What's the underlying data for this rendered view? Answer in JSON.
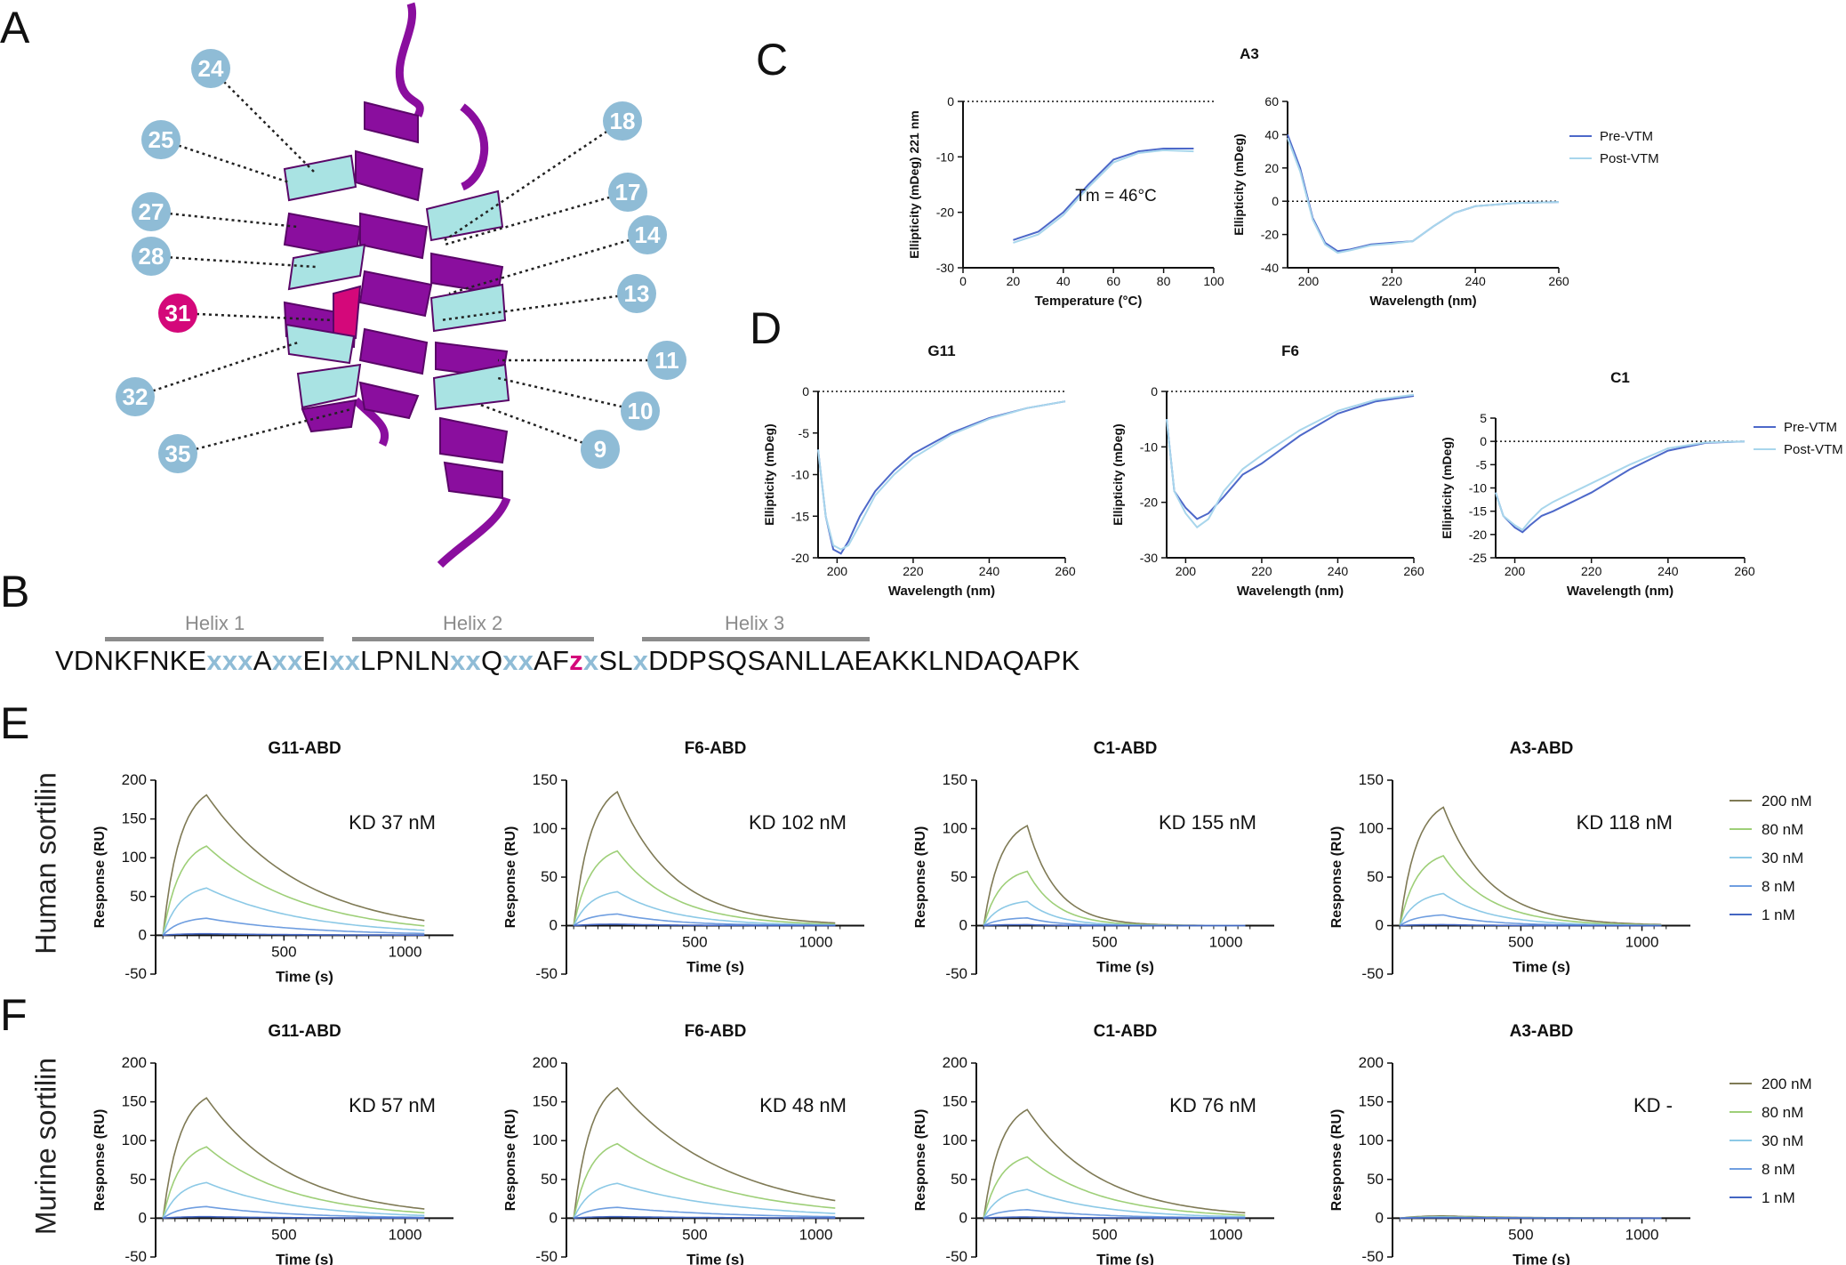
{
  "panel_labels": {
    "a": "A",
    "b": "B",
    "c": "C",
    "d": "D",
    "e": "E",
    "f": "F"
  },
  "row_labels": {
    "e": "Human sortilin",
    "f": "Murine sortilin"
  },
  "colors": {
    "helix_purple": "#8a0e9e",
    "helix_cyan": "#a9e3e3",
    "pos31": "#d4087a",
    "circle": "#8fbcd6",
    "pre": "#4d68c9",
    "post": "#a8d6ec",
    "c200": "#7f7a55",
    "c80": "#9ecf78",
    "c30": "#8cc9e6",
    "c8": "#6f9ee0",
    "c1": "#4466c2"
  },
  "panel_a": {
    "positions": [
      "24",
      "25",
      "27",
      "28",
      "31",
      "32",
      "35",
      "18",
      "17",
      "14",
      "13",
      "11",
      "10",
      "9"
    ]
  },
  "panel_b": {
    "helices": [
      "Helix 1",
      "Helix 2",
      "Helix 3"
    ],
    "sequence": [
      {
        "t": "VDNKFNKE",
        "c": "n"
      },
      {
        "t": "xxx",
        "c": "x"
      },
      {
        "t": "A",
        "c": "n"
      },
      {
        "t": "xx",
        "c": "x"
      },
      {
        "t": "EI",
        "c": "n"
      },
      {
        "t": "xx",
        "c": "x"
      },
      {
        "t": "LPNLN",
        "c": "n"
      },
      {
        "t": "xx",
        "c": "x"
      },
      {
        "t": "Q",
        "c": "n"
      },
      {
        "t": "xx",
        "c": "x"
      },
      {
        "t": "AF",
        "c": "n"
      },
      {
        "t": "z",
        "c": "z"
      },
      {
        "t": "x",
        "c": "x"
      },
      {
        "t": "SL",
        "c": "n"
      },
      {
        "t": "x",
        "c": "x"
      },
      {
        "t": "DDPSQSANLLAEAKKLNDAQAPK",
        "c": "n"
      }
    ]
  },
  "chart_data": [
    {
      "id": "c_melt",
      "type": "line",
      "title": "A3",
      "xlabel": "Temperature (°C)",
      "ylabel": "Ellipticity (mDeg) 221 nm",
      "xlim": [
        0,
        100
      ],
      "ylim": [
        -30,
        0
      ],
      "xticks": [
        0,
        20,
        40,
        60,
        80,
        100
      ],
      "yticks": [
        0,
        -10,
        -20,
        -30
      ],
      "annotation": "Tm = 46°C",
      "zero_line": true,
      "series": [
        {
          "name": "Pre-VTM",
          "x": [
            20,
            30,
            40,
            46,
            50,
            60,
            70,
            80,
            92
          ],
          "y": [
            -25,
            -23.5,
            -20,
            -17,
            -15,
            -10.5,
            -9,
            -8.5,
            -8.5
          ]
        },
        {
          "name": "Post-VTM",
          "x": [
            20,
            30,
            40,
            46,
            50,
            60,
            70,
            80,
            92
          ],
          "y": [
            -25.5,
            -24,
            -20.5,
            -17.5,
            -15.5,
            -11,
            -9.3,
            -8.8,
            -9
          ]
        }
      ]
    },
    {
      "id": "c_spec",
      "type": "line",
      "title": "",
      "xlabel": "Wavelength (nm)",
      "ylabel": "Ellipticity (mDeg)",
      "xlim": [
        195,
        260
      ],
      "ylim": [
        -40,
        60
      ],
      "xticks": [
        200,
        220,
        240,
        260
      ],
      "yticks": [
        60,
        40,
        20,
        0,
        -20,
        -40
      ],
      "zero_line": true,
      "legend": [
        "Pre-VTM",
        "Post-VTM"
      ],
      "series": [
        {
          "name": "Pre-VTM",
          "x": [
            195,
            198,
            201,
            204,
            207,
            210,
            215,
            220,
            225,
            230,
            235,
            240,
            250,
            260
          ],
          "y": [
            40,
            20,
            -10,
            -25,
            -30,
            -29,
            -26,
            -25,
            -24,
            -15,
            -7,
            -3,
            -1,
            -0.5
          ]
        },
        {
          "name": "Post-VTM",
          "x": [
            195,
            198,
            201,
            204,
            207,
            210,
            215,
            220,
            225,
            230,
            235,
            240,
            250,
            260
          ],
          "y": [
            38,
            18,
            -11,
            -26,
            -31,
            -29.5,
            -26.5,
            -25.5,
            -24,
            -15,
            -7,
            -3,
            -1,
            -0.5
          ]
        }
      ]
    },
    {
      "id": "d_g11",
      "type": "line",
      "title": "G11",
      "xlabel": "Wavelength (nm)",
      "ylabel": "Ellipticity (mDeg)",
      "xlim": [
        195,
        260
      ],
      "ylim": [
        -20,
        0
      ],
      "xticks": [
        200,
        220,
        240,
        260
      ],
      "yticks": [
        0,
        -5,
        -10,
        -15,
        -20
      ],
      "zero_line": true,
      "series": [
        {
          "name": "Pre-VTM",
          "x": [
            195,
            197,
            199,
            201,
            203,
            206,
            210,
            215,
            220,
            230,
            240,
            250,
            260
          ],
          "y": [
            -7,
            -15,
            -19,
            -19.5,
            -18,
            -15,
            -12,
            -9.5,
            -7.5,
            -5,
            -3.2,
            -2,
            -1.2
          ]
        },
        {
          "name": "Post-VTM",
          "x": [
            195,
            197,
            199,
            201,
            203,
            206,
            210,
            215,
            220,
            230,
            240,
            250,
            260
          ],
          "y": [
            -7,
            -15,
            -18.5,
            -19,
            -18.5,
            -16,
            -12.5,
            -10,
            -8,
            -5.2,
            -3.3,
            -2,
            -1.2
          ]
        }
      ]
    },
    {
      "id": "d_f6",
      "type": "line",
      "title": "F6",
      "xlabel": "Wavelength (nm)",
      "ylabel": "Ellipticity (mDeg)",
      "xlim": [
        195,
        260
      ],
      "ylim": [
        -30,
        0
      ],
      "xticks": [
        200,
        220,
        240,
        260
      ],
      "yticks": [
        0,
        -10,
        -20,
        -30
      ],
      "zero_line": true,
      "series": [
        {
          "name": "Pre-VTM",
          "x": [
            195,
            197,
            200,
            203,
            206,
            210,
            215,
            220,
            230,
            240,
            250,
            260
          ],
          "y": [
            -5,
            -18,
            -21,
            -23,
            -22,
            -19,
            -15,
            -13,
            -8,
            -4,
            -1.8,
            -0.8
          ]
        },
        {
          "name": "Post-VTM",
          "x": [
            195,
            197,
            200,
            203,
            206,
            210,
            215,
            220,
            230,
            240,
            250,
            260
          ],
          "y": [
            -5,
            -18,
            -22,
            -24.5,
            -23,
            -18,
            -14,
            -11.5,
            -7,
            -3.5,
            -1.5,
            -0.6
          ]
        }
      ]
    },
    {
      "id": "d_c1",
      "type": "line",
      "title": "C1",
      "xlabel": "Wavelength (nm)",
      "ylabel": "Ellipticity (mDeg)",
      "xlim": [
        195,
        260
      ],
      "ylim": [
        -25,
        5
      ],
      "xticks": [
        200,
        220,
        240,
        260
      ],
      "yticks": [
        5,
        0,
        -5,
        -10,
        -15,
        -20,
        -25
      ],
      "zero_line": true,
      "legend": [
        "Pre-VTM",
        "Post-VTM"
      ],
      "series": [
        {
          "name": "Pre-VTM",
          "x": [
            195,
            197,
            200,
            202,
            204,
            207,
            210,
            215,
            220,
            230,
            240,
            250,
            260
          ],
          "y": [
            -11,
            -16,
            -18.5,
            -19.5,
            -18,
            -16,
            -15,
            -13,
            -11,
            -6,
            -2,
            -0.3,
            0
          ]
        },
        {
          "name": "Post-VTM",
          "x": [
            195,
            197,
            200,
            202,
            204,
            207,
            210,
            215,
            220,
            230,
            240,
            250,
            260
          ],
          "y": [
            -11,
            -16,
            -18,
            -19,
            -17,
            -14.5,
            -13,
            -11,
            -9,
            -5,
            -1.5,
            -0.2,
            0
          ]
        }
      ]
    },
    {
      "id": "e1",
      "type": "line",
      "group": "spr",
      "title": "G11-ABD",
      "kd": "KD 37 nM",
      "xlabel": "Time (s)",
      "ylabel": "Response (RU)",
      "xlim": [
        -30,
        1200
      ],
      "ylim": [
        -50,
        200
      ],
      "xticks": [
        500,
        1000
      ],
      "yticks": [
        200,
        150,
        100,
        50,
        0,
        -50
      ],
      "peaks": [
        181,
        115,
        61,
        22,
        2
      ],
      "peak_t": 180,
      "end_t": 1080,
      "tau_decay": 400
    },
    {
      "id": "e2",
      "type": "line",
      "group": "spr",
      "title": "F6-ABD",
      "kd": "KD 102 nM",
      "xlabel": "Time (s)",
      "ylabel": "Response (RU)",
      "xlim": [
        -30,
        1200
      ],
      "ylim": [
        -50,
        150
      ],
      "xticks": [
        500,
        1000
      ],
      "yticks": [
        150,
        100,
        50,
        0,
        -50
      ],
      "peaks": [
        138,
        77,
        35,
        12,
        1.5
      ],
      "peak_t": 180,
      "end_t": 1080,
      "tau_decay": 230
    },
    {
      "id": "e3",
      "type": "line",
      "group": "spr",
      "title": "C1-ABD",
      "kd": "KD 155 nM",
      "xlabel": "Time (s)",
      "ylabel": "Response (RU)",
      "xlim": [
        -30,
        1200
      ],
      "ylim": [
        -50,
        150
      ],
      "xticks": [
        500,
        1000
      ],
      "yticks": [
        150,
        100,
        50,
        0,
        -50
      ],
      "peaks": [
        103,
        56,
        25,
        8,
        1
      ],
      "peak_t": 180,
      "end_t": 1080,
      "tau_decay": 120
    },
    {
      "id": "e4",
      "type": "line",
      "group": "spr",
      "title": "A3-ABD",
      "kd": "KD 118 nM",
      "xlabel": "Time (s)",
      "ylabel": "Response (RU)",
      "xlim": [
        -30,
        1200
      ],
      "ylim": [
        -50,
        150
      ],
      "xticks": [
        500,
        1000
      ],
      "yticks": [
        150,
        100,
        50,
        0,
        -50
      ],
      "peaks": [
        122,
        72,
        33,
        11,
        1
      ],
      "peak_t": 180,
      "end_t": 1080,
      "tau_decay": 190
    },
    {
      "id": "f1",
      "type": "line",
      "group": "spr",
      "title": "G11-ABD",
      "kd": "KD 57 nM",
      "xlabel": "Time (s)",
      "ylabel": "Response (RU)",
      "xlim": [
        -30,
        1200
      ],
      "ylim": [
        -50,
        200
      ],
      "xticks": [
        500,
        1000
      ],
      "yticks": [
        200,
        150,
        100,
        50,
        0,
        -50
      ],
      "peaks": [
        155,
        92,
        46,
        15,
        2
      ],
      "peak_t": 180,
      "end_t": 1080,
      "tau_decay": 350
    },
    {
      "id": "f2",
      "type": "line",
      "group": "spr",
      "title": "F6-ABD",
      "kd": "KD 48 nM",
      "xlabel": "Time (s)",
      "ylabel": "Response (RU)",
      "xlim": [
        -30,
        1200
      ],
      "ylim": [
        -50,
        200
      ],
      "xticks": [
        500,
        1000
      ],
      "yticks": [
        200,
        150,
        100,
        50,
        0,
        -50
      ],
      "peaks": [
        168,
        96,
        45,
        14,
        2
      ],
      "peak_t": 180,
      "end_t": 1080,
      "tau_decay": 450
    },
    {
      "id": "f3",
      "type": "line",
      "group": "spr",
      "title": "C1-ABD",
      "kd": "KD 76 nM",
      "xlabel": "Time (s)",
      "ylabel": "Response (RU)",
      "xlim": [
        -30,
        1200
      ],
      "ylim": [
        -50,
        200
      ],
      "xticks": [
        500,
        1000
      ],
      "yticks": [
        200,
        150,
        100,
        50,
        0,
        -50
      ],
      "peaks": [
        140,
        79,
        37,
        11,
        1.5
      ],
      "peak_t": 180,
      "end_t": 1080,
      "tau_decay": 300
    },
    {
      "id": "f4",
      "type": "line",
      "group": "spr",
      "title": "A3-ABD",
      "kd": "KD -",
      "xlabel": "Time (s)",
      "ylabel": "Response (RU)",
      "xlim": [
        -30,
        1200
      ],
      "ylim": [
        -50,
        200
      ],
      "xticks": [
        500,
        1000
      ],
      "yticks": [
        200,
        150,
        100,
        50,
        0,
        -50
      ],
      "peaks": [
        3,
        2,
        1.5,
        1,
        0.5
      ],
      "peak_t": 180,
      "end_t": 1080,
      "tau_decay": 300
    }
  ],
  "spr_legend": [
    "200 nM",
    "80 nM",
    "30 nM",
    "8 nM",
    "1 nM"
  ]
}
